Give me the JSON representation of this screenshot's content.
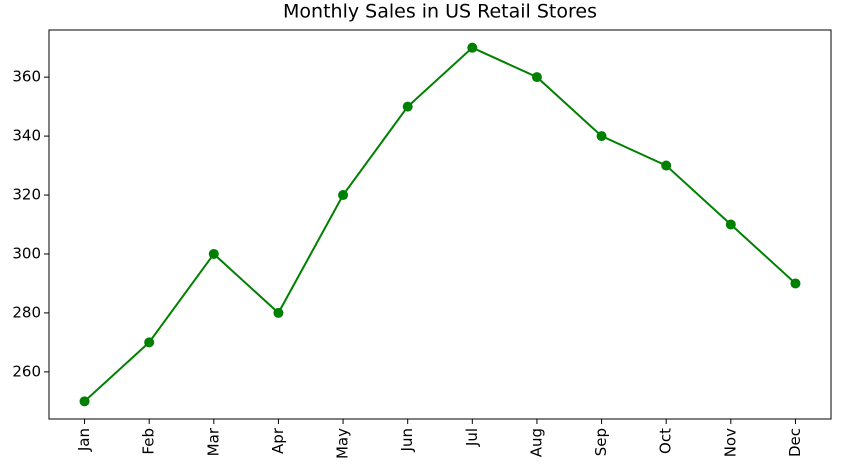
{
  "chart_data": {
    "type": "line",
    "title": "Monthly Sales in US Retail Stores",
    "categories": [
      "Jan",
      "Feb",
      "Mar",
      "Apr",
      "May",
      "Jun",
      "Jul",
      "Aug",
      "Sep",
      "Oct",
      "Nov",
      "Dec"
    ],
    "values": [
      250,
      270,
      300,
      280,
      320,
      350,
      370,
      360,
      340,
      330,
      310,
      290
    ],
    "color": "#008000",
    "marker": true,
    "ylim": [
      244,
      376
    ],
    "yticks": [
      260,
      280,
      300,
      320,
      340,
      360
    ],
    "grid": false
  }
}
